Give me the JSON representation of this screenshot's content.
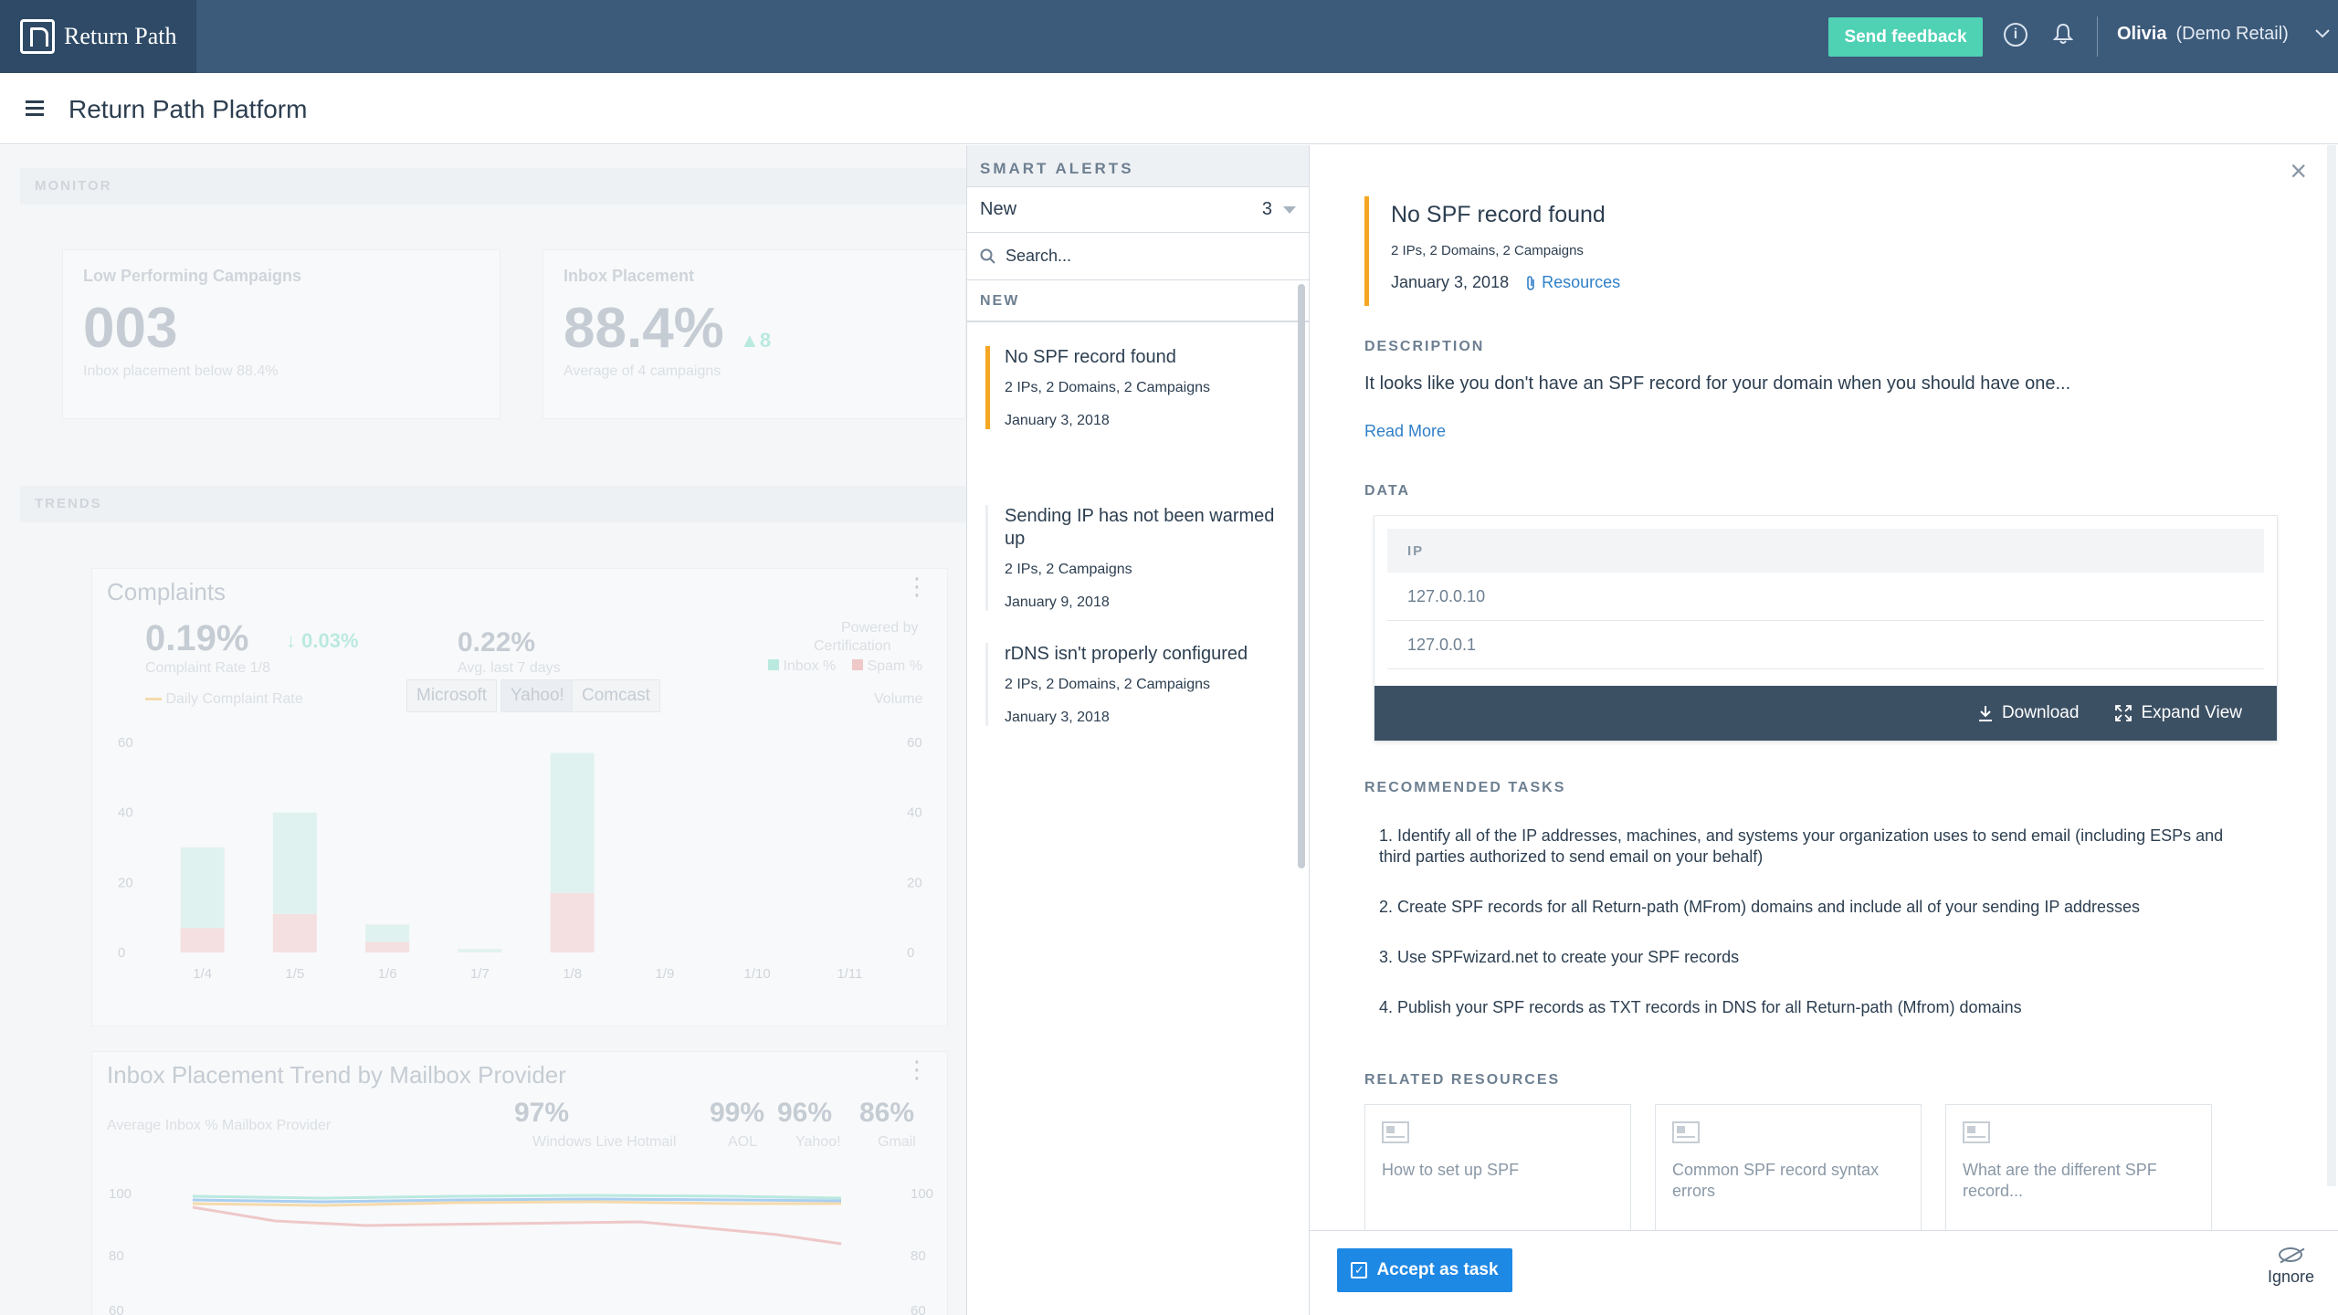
{
  "topbar": {
    "logo_text": "Return Path",
    "feedback_label": "Send feedback",
    "info_glyph": "i",
    "user_name": "Olivia",
    "user_account": "(Demo Retail)"
  },
  "header": {
    "title": "Return Path Platform"
  },
  "dashboard": {
    "monitor_label": "MONITOR",
    "trends_label": "TRENDS",
    "low_perf": {
      "title": "Low Performing Campaigns",
      "value": "003",
      "sub": "Inbox placement below 88.4%"
    },
    "inbox_placement": {
      "title": "Inbox Placement",
      "value": "88.4%",
      "delta": "8",
      "sub": "Average of 4 campaigns"
    },
    "complaints": {
      "title": "Complaints",
      "rate": "0.19%",
      "delta": "0.03%",
      "rate_sub": "Complaint Rate 1/8",
      "avg": "0.22%",
      "avg_sub": "Avg. last 7 days",
      "powered": "Powered by",
      "certification": "Certification",
      "legend_inbox": "Inbox %",
      "legend_spam": "Spam %",
      "daily_label": "Daily Complaint Rate",
      "volume_label": "Volume",
      "filters": [
        "Microsoft",
        "Yahoo!",
        "Comcast"
      ],
      "selected_filter": "Yahoo!"
    },
    "inbox_trend": {
      "title": "Inbox Placement Trend by Mailbox Provider",
      "sub": "Average Inbox % Mailbox Provider",
      "providers": [
        {
          "value": "97%",
          "name": "Windows Live Hotmail"
        },
        {
          "value": "99%",
          "name": "AOL"
        },
        {
          "value": "96%",
          "name": "Yahoo!"
        },
        {
          "value": "86%",
          "name": "Gmail"
        }
      ]
    }
  },
  "chart_data": {
    "type": "bar",
    "title": "Complaints",
    "categories": [
      "1/4",
      "1/5",
      "1/6",
      "1/7",
      "1/8",
      "1/9",
      "1/10",
      "1/11"
    ],
    "series": [
      {
        "name": "Spam %",
        "values": [
          7,
          11,
          3,
          0,
          17,
          0,
          0,
          0
        ]
      },
      {
        "name": "Inbox %",
        "values": [
          23,
          29,
          5,
          1,
          40,
          0,
          0,
          0
        ]
      }
    ],
    "yticks": [
      0,
      20,
      40,
      60
    ],
    "ylim": [
      0,
      60
    ],
    "stacked": true,
    "colors": {
      "inbox": "#b9ece0",
      "spam": "#f3b8b8"
    }
  },
  "alerts": {
    "header": "SMART ALERTS",
    "filter_value": "New",
    "filter_count": "3",
    "search_placeholder": "Search...",
    "group_label": "NEW",
    "items": [
      {
        "title": "No SPF record found",
        "meta": "2 IPs, 2 Domains, 2 Campaigns",
        "date": "January 3, 2018"
      },
      {
        "title": "Sending IP has not been warmed up",
        "meta": "2 IPs, 2 Campaigns",
        "date": "January 9, 2018"
      },
      {
        "title": "rDNS isn't properly configured",
        "meta": "2 IPs, 2 Domains, 2 Campaigns",
        "date": "January 3, 2018"
      }
    ]
  },
  "detail": {
    "title": "No SPF record found",
    "meta": "2 IPs, 2 Domains, 2 Campaigns",
    "date": "January 3, 2018",
    "resources_link": "Resources",
    "description_label": "DESCRIPTION",
    "description": "It looks like you don't have an SPF record for your domain when you should have one...",
    "read_more": "Read More",
    "data_label": "DATA",
    "table_header": "IP",
    "ips": [
      "127.0.0.10",
      "127.0.0.1"
    ],
    "download_label": "Download",
    "expand_label": "Expand View",
    "tasks_label": "RECOMMENDED TASKS",
    "tasks": [
      "1. Identify all of the IP addresses, machines, and systems your organization uses to send email (including ESPs and third parties authorized to send email on your behalf)",
      "2. Create SPF records for all Return-path (MFrom) domains and include all of your sending IP addresses",
      "3. Use SPFwizard.net to create your SPF records",
      "4. Publish your SPF records as TXT records in DNS for all Return-path (Mfrom) domains"
    ],
    "resources_label": "RELATED RESOURCES",
    "resources": [
      "How to set up SPF",
      "Common SPF record syntax errors",
      "What are the different SPF record..."
    ],
    "accept_label": "Accept as task",
    "ignore_label": "Ignore"
  },
  "colors": {
    "topbar": "#3c5a7a",
    "accent_teal": "#4fd1b4",
    "alert_orange": "#f5a623",
    "primary_blue": "#1e88e5",
    "link_blue": "#2e7fc8"
  }
}
